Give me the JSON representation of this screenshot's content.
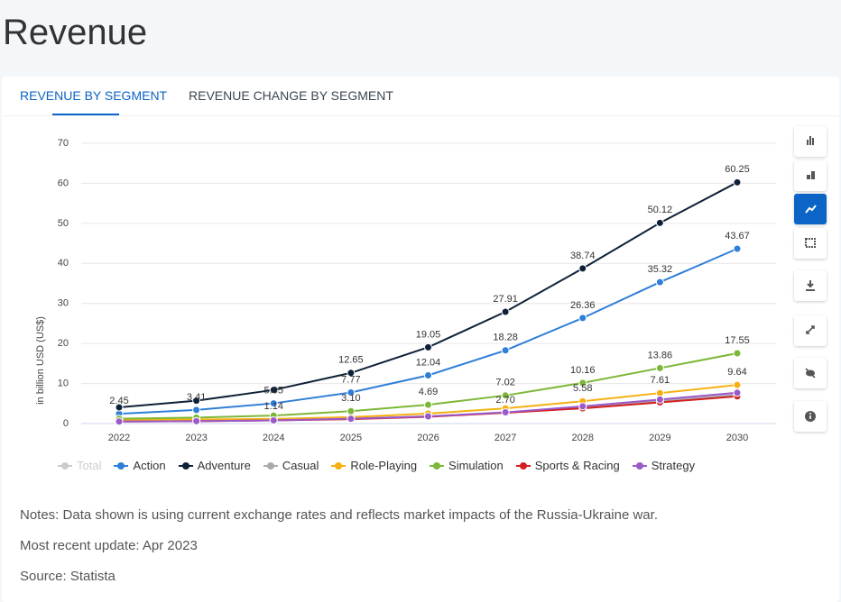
{
  "page_title": "Revenue",
  "tabs": [
    "REVENUE BY SEGMENT",
    "REVENUE CHANGE BY SEGMENT"
  ],
  "chart_data": {
    "type": "line",
    "y_axis_label": "in billion USD (US$)",
    "categories": [
      "2022",
      "2023",
      "2024",
      "2025",
      "2026",
      "2027",
      "2028",
      "2029",
      "2030"
    ],
    "ylim": [
      0,
      70
    ],
    "yticks": [
      0,
      10,
      20,
      30,
      40,
      50,
      60,
      70
    ],
    "grid": true,
    "series": [
      {
        "name": "Total",
        "color": "#cccccc",
        "hidden": true,
        "values": [
          null,
          null,
          null,
          null,
          null,
          null,
          null,
          null,
          null
        ]
      },
      {
        "name": "Action",
        "color": "#2f7ed8",
        "values": [
          2.45,
          3.41,
          5.05,
          7.77,
          12.04,
          18.28,
          26.36,
          35.32,
          43.67
        ],
        "value_labels": [
          "2.45",
          "3.41",
          "5.05",
          "7.77",
          "12.04",
          "18.28",
          "26.36",
          "35.32",
          "43.67"
        ]
      },
      {
        "name": "Adventure",
        "color": "#0f2138",
        "values": [
          4.05,
          5.7,
          8.4,
          12.65,
          19.05,
          27.91,
          38.74,
          50.12,
          60.25
        ],
        "value_labels": [
          null,
          null,
          null,
          "12.65",
          "19.05",
          "27.91",
          "38.74",
          "50.12",
          "60.25"
        ]
      },
      {
        "name": "Casual",
        "color": "#aaaaaa",
        "values": [
          0.7,
          0.8,
          0.9,
          1.2,
          1.8,
          2.7,
          4.0,
          5.6,
          7.2
        ]
      },
      {
        "name": "Role-Playing",
        "color": "#f5b011",
        "values": [
          0.9,
          1.0,
          1.14,
          1.6,
          2.5,
          3.8,
          5.58,
          7.61,
          9.64
        ],
        "value_labels": [
          null,
          null,
          "1.14",
          null,
          null,
          null,
          "5.58",
          "7.61",
          "9.64"
        ]
      },
      {
        "name": "Simulation",
        "color": "#7db737",
        "values": [
          1.2,
          1.5,
          2.0,
          3.1,
          4.69,
          7.02,
          10.16,
          13.86,
          17.55
        ],
        "value_labels": [
          null,
          null,
          null,
          "3.10",
          "4.69",
          "7.02",
          "10.16",
          "13.86",
          "17.55"
        ]
      },
      {
        "name": "Sports & Racing",
        "color": "#d31f1f",
        "values": [
          0.5,
          0.6,
          0.8,
          1.1,
          1.7,
          2.7,
          3.8,
          5.3,
          6.8
        ],
        "value_labels": [
          null,
          null,
          null,
          null,
          null,
          "2.70",
          null,
          null,
          null
        ]
      },
      {
        "name": "Strategy",
        "color": "#9b59c9",
        "values": [
          0.5,
          0.6,
          0.8,
          1.2,
          1.8,
          2.8,
          4.3,
          6.0,
          7.7
        ]
      }
    ]
  },
  "notes": [
    "Notes: Data shown is using current exchange rates and reflects market impacts of the Russia-Ukraine war.",
    "Most recent update: Apr 2023",
    "Source: Statista"
  ]
}
